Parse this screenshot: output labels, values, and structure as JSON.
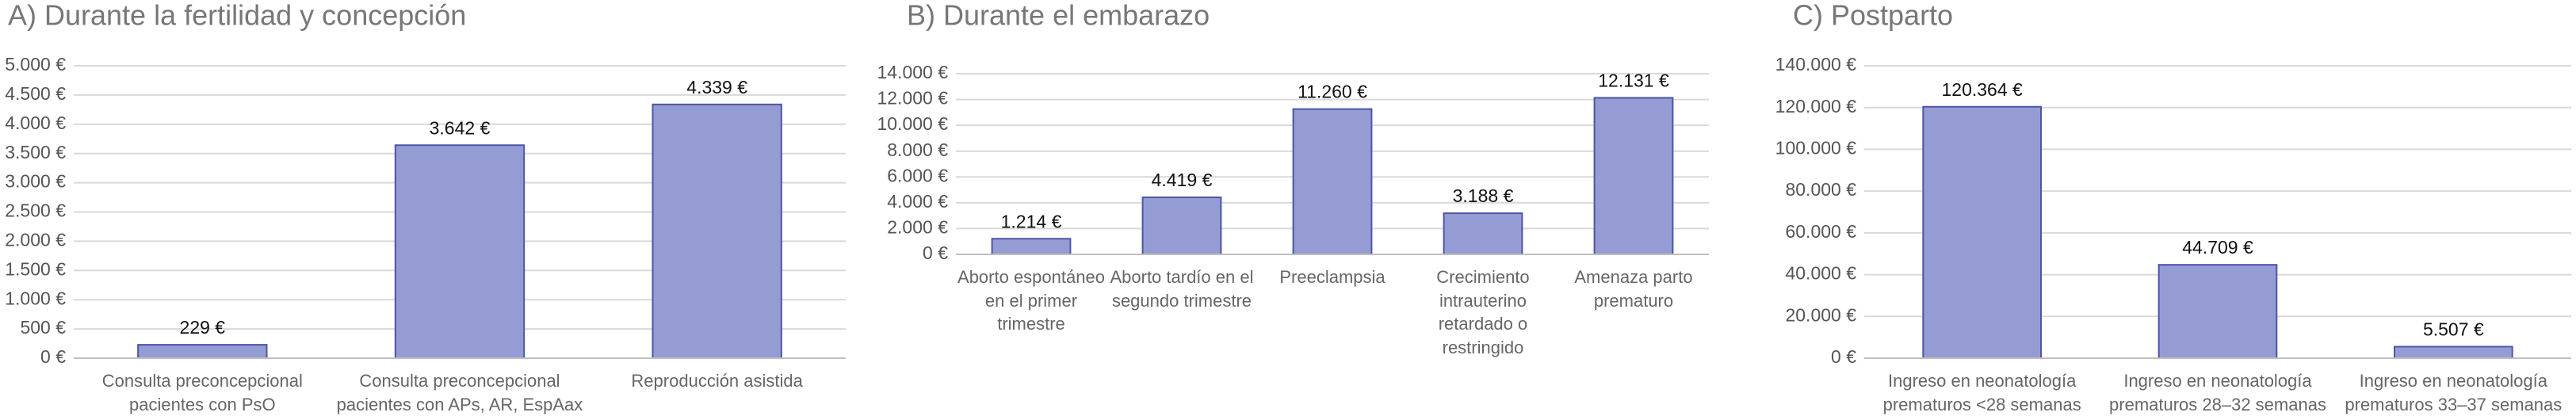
{
  "chart_data": [
    {
      "type": "bar",
      "title": "A) Durante la fertilidad y concepción",
      "categories": [
        "Consulta preconcepcional pacientes con PsO",
        "Consulta preconcepcional pacientes con APs, AR, EspAax",
        "Reproducción asistida"
      ],
      "values": [
        229,
        3642,
        4339
      ],
      "value_labels": [
        "229 €",
        "3.642 €",
        "4.339 €"
      ],
      "color": "#959cd4",
      "ylim": [
        0,
        5000
      ],
      "yticks": [
        {
          "value": 0,
          "label": "0 €"
        },
        {
          "value": 500,
          "label": "500 €"
        },
        {
          "value": 1000,
          "label": "1.000 €"
        },
        {
          "value": 1500,
          "label": "1.500 €"
        },
        {
          "value": 2000,
          "label": "2.000 €"
        },
        {
          "value": 2500,
          "label": "2.500 €"
        },
        {
          "value": 3000,
          "label": "3.000 €"
        },
        {
          "value": 3500,
          "label": "3.500 €"
        },
        {
          "value": 4000,
          "label": "4.000 €"
        },
        {
          "value": 4500,
          "label": "4.500 €"
        },
        {
          "value": 5000,
          "label": "5.000 €"
        }
      ],
      "grid": true
    },
    {
      "type": "bar",
      "title": "B) Durante el embarazo",
      "categories": [
        "Aborto espontáneo en el primer trimestre",
        "Aborto tardío en el segundo trimestre",
        "Preeclampsia",
        "Crecimiento intrauterino retardado o restringido",
        "Amenaza parto prematuro"
      ],
      "values": [
        1214,
        4419,
        11260,
        3188,
        12131
      ],
      "value_labels": [
        "1.214 €",
        "4.419 €",
        "11.260 €",
        "3.188 €",
        "12.131 €"
      ],
      "color": "#959cd4",
      "ylim": [
        0,
        14000
      ],
      "yticks": [
        {
          "value": 0,
          "label": "0 €"
        },
        {
          "value": 2000,
          "label": "2.000 €"
        },
        {
          "value": 4000,
          "label": "4.000 €"
        },
        {
          "value": 6000,
          "label": "6.000 €"
        },
        {
          "value": 8000,
          "label": "8.000 €"
        },
        {
          "value": 10000,
          "label": "10.000 €"
        },
        {
          "value": 12000,
          "label": "12.000 €"
        },
        {
          "value": 14000,
          "label": "14.000 €"
        }
      ],
      "grid": true
    },
    {
      "type": "bar",
      "title": "C) Postparto",
      "categories": [
        "Ingreso en neonatología prematuros <28 semanas",
        "Ingreso en neonatología prematuros 28–32 semanas",
        "Ingreso en neonatología prematuros 33–37 semanas"
      ],
      "values": [
        120364,
        44709,
        5507
      ],
      "value_labels": [
        "120.364 €",
        "44.709 €",
        "5.507 €"
      ],
      "color": "#959cd4",
      "ylim": [
        0,
        140000
      ],
      "yticks": [
        {
          "value": 0,
          "label": "0 €"
        },
        {
          "value": 20000,
          "label": "20.000 €"
        },
        {
          "value": 40000,
          "label": "40.000 €"
        },
        {
          "value": 60000,
          "label": "60.000 €"
        },
        {
          "value": 80000,
          "label": "80.000 €"
        },
        {
          "value": 100000,
          "label": "100.000 €"
        },
        {
          "value": 120000,
          "label": "120.000 €"
        },
        {
          "value": 140000,
          "label": "140.000 €"
        }
      ],
      "grid": true
    }
  ]
}
